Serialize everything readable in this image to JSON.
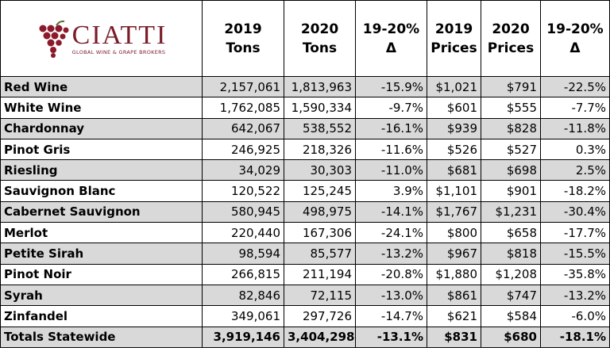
{
  "logo": {
    "name": "CIATTI",
    "tagline": "GLOBAL WINE & GRAPE BROKERS"
  },
  "table": {
    "headers": [
      [
        "2019",
        "Tons"
      ],
      [
        "2020",
        "Tons"
      ],
      [
        "19-20%",
        "Δ"
      ],
      [
        "2019",
        "Prices"
      ],
      [
        "2020",
        "Prices"
      ],
      [
        "19-20%",
        "Δ"
      ]
    ],
    "rows": [
      [
        "Red Wine",
        "2,157,061",
        "1,813,963",
        "-15.9%",
        "$1,021",
        "$791",
        "-22.5%"
      ],
      [
        "White Wine",
        "1,762,085",
        "1,590,334",
        "-9.7%",
        "$601",
        "$555",
        "-7.7%"
      ],
      [
        "Chardonnay",
        "642,067",
        "538,552",
        "-16.1%",
        "$939",
        "$828",
        "-11.8%"
      ],
      [
        "Pinot Gris",
        "246,925",
        "218,326",
        "-11.6%",
        "$526",
        "$527",
        "0.3%"
      ],
      [
        "Riesling",
        "34,029",
        "30,303",
        "-11.0%",
        "$681",
        "$698",
        "2.5%"
      ],
      [
        "Sauvignon Blanc",
        "120,522",
        "125,245",
        "3.9%",
        "$1,101",
        "$901",
        "-18.2%"
      ],
      [
        "Cabernet Sauvignon",
        "580,945",
        "498,975",
        "-14.1%",
        "$1,767",
        "$1,231",
        "-30.4%"
      ],
      [
        "Merlot",
        "220,440",
        "167,306",
        "-24.1%",
        "$800",
        "$658",
        "-17.7%"
      ],
      [
        "Petite Sirah",
        "98,594",
        "85,577",
        "-13.2%",
        "$967",
        "$818",
        "-15.5%"
      ],
      [
        "Pinot Noir",
        "266,815",
        "211,194",
        "-20.8%",
        "$1,880",
        "$1,208",
        "-35.8%"
      ],
      [
        "Syrah",
        "82,846",
        "72,115",
        "-13.0%",
        "$861",
        "$747",
        "-13.2%"
      ],
      [
        "Zinfandel",
        "349,061",
        "297,726",
        "-14.7%",
        "$621",
        "$584",
        "-6.0%"
      ]
    ],
    "total": [
      "Totals Statewide",
      "3,919,146",
      "3,404,298",
      "-13.1%",
      "$831",
      "$680",
      "-18.1%"
    ]
  }
}
